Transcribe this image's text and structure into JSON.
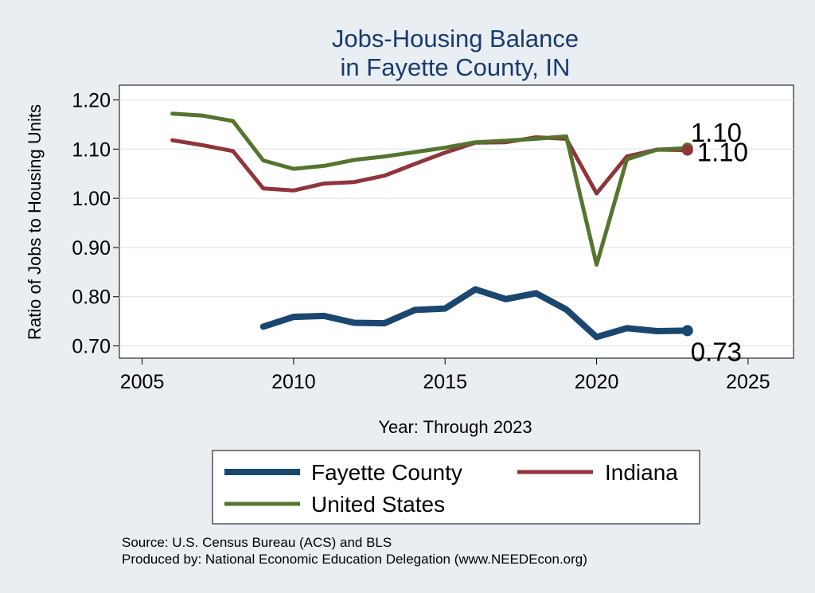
{
  "chart_data": {
    "type": "line",
    "title": [
      "Jobs-Housing Balance",
      "in Fayette County, IN"
    ],
    "xlabel": "Year: Through 2023",
    "ylabel": "Ratio of Jobs to Housing Units",
    "xlim": [
      2004.25,
      2026.5
    ],
    "ylim": [
      0.675,
      1.23
    ],
    "xticks": [
      2005,
      2010,
      2015,
      2020,
      2025
    ],
    "yticks": [
      0.7,
      0.8,
      0.9,
      1.0,
      1.1,
      1.2
    ],
    "ytick_labels": [
      "0.70",
      "0.80",
      "0.90",
      "1.00",
      "1.10",
      "1.20"
    ],
    "grid": true,
    "legend_position": "bottom",
    "series": [
      {
        "name": "Fayette County",
        "color": "#1a476f",
        "x": [
          2009,
          2010,
          2011,
          2012,
          2013,
          2014,
          2015,
          2016,
          2017,
          2018,
          2019,
          2020,
          2021,
          2022,
          2023
        ],
        "y": [
          0.739,
          0.759,
          0.761,
          0.747,
          0.746,
          0.773,
          0.776,
          0.815,
          0.795,
          0.807,
          0.774,
          0.718,
          0.736,
          0.73,
          0.731
        ],
        "end_label": "0.73"
      },
      {
        "name": "Indiana",
        "color": "#90353b",
        "x": [
          2006,
          2007,
          2008,
          2009,
          2010,
          2011,
          2012,
          2013,
          2014,
          2015,
          2016,
          2017,
          2018,
          2019,
          2020,
          2021,
          2022,
          2023
        ],
        "y": [
          1.118,
          1.108,
          1.096,
          1.02,
          1.016,
          1.03,
          1.033,
          1.046,
          1.07,
          1.093,
          1.113,
          1.114,
          1.124,
          1.121,
          1.01,
          1.085,
          1.099,
          1.098
        ],
        "end_label": "1.10"
      },
      {
        "name": "United States",
        "color": "#55752f",
        "x": [
          2006,
          2007,
          2008,
          2009,
          2010,
          2011,
          2012,
          2013,
          2014,
          2015,
          2016,
          2017,
          2018,
          2019,
          2020,
          2021,
          2022,
          2023
        ],
        "y": [
          1.172,
          1.168,
          1.157,
          1.077,
          1.06,
          1.066,
          1.078,
          1.085,
          1.094,
          1.103,
          1.114,
          1.117,
          1.121,
          1.126,
          0.865,
          1.079,
          1.099,
          1.102
        ],
        "end_label": "1.10"
      }
    ]
  },
  "source_text": "Source: U.S. Census Bureau (ACS) and BLS",
  "produced_text": "Produced by: National Economic Education Delegation (www.NEEDEcon.org)"
}
